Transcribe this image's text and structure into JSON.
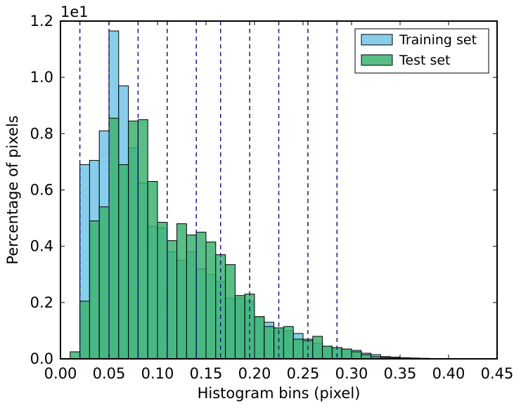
{
  "chart_data": {
    "type": "bar",
    "subtype": "overlapping-histogram",
    "title": "",
    "xlabel": "Histogram bins (pixel)",
    "ylabel": "Percentage of pixels",
    "scale_label": "1e1",
    "xlim": [
      0.0,
      0.45
    ],
    "ylim": [
      0.0,
      1.2
    ],
    "bin_width": 0.01,
    "bin_start": 0.01,
    "xticks": [
      "0.00",
      "0.05",
      "0.10",
      "0.15",
      "0.20",
      "0.25",
      "0.30",
      "0.35",
      "0.40",
      "0.45"
    ],
    "xtick_values": [
      0.0,
      0.05,
      0.1,
      0.15,
      0.2,
      0.25,
      0.3,
      0.35,
      0.4,
      0.45
    ],
    "yticks": [
      "0.0",
      "0.2",
      "0.4",
      "0.6",
      "0.8",
      "1.0",
      "1.2"
    ],
    "ytick_values": [
      0.0,
      0.2,
      0.4,
      0.6,
      0.8,
      1.0,
      1.2
    ],
    "vlines": [
      0.02,
      0.05,
      0.08,
      0.11,
      0.14,
      0.165,
      0.195,
      0.225,
      0.255,
      0.285
    ],
    "vline_color": "#1a1a7a",
    "legend_position": "top-right",
    "series": [
      {
        "name": "Training set",
        "color": "#87ceeb",
        "values": [
          0.0,
          0.69,
          0.705,
          0.81,
          1.165,
          0.97,
          0.75,
          0.625,
          0.47,
          0.465,
          0.38,
          0.35,
          0.38,
          0.32,
          0.3,
          0.275,
          0.215,
          0.215,
          0.205,
          0.15,
          0.13,
          0.11,
          0.1,
          0.09,
          0.07,
          0.055,
          0.045,
          0.04,
          0.035,
          0.03,
          0.02,
          0.015,
          0.008,
          0.006,
          0.004,
          0.003,
          0.002,
          0.001,
          0.0,
          0.0,
          0.0,
          0.0,
          0.0,
          0.0
        ]
      },
      {
        "name": "Test set",
        "color": "#3cb371",
        "values": [
          0.025,
          0.205,
          0.49,
          0.54,
          0.855,
          0.69,
          0.845,
          0.85,
          0.63,
          0.485,
          0.42,
          0.48,
          0.44,
          0.45,
          0.415,
          0.37,
          0.335,
          0.225,
          0.23,
          0.15,
          0.115,
          0.11,
          0.115,
          0.07,
          0.065,
          0.08,
          0.045,
          0.04,
          0.035,
          0.025,
          0.015,
          0.008,
          0.005,
          0.003,
          0.002,
          0.001,
          0.001,
          0.0,
          0.0,
          0.0,
          0.0,
          0.0,
          0.0,
          0.0
        ]
      }
    ]
  }
}
